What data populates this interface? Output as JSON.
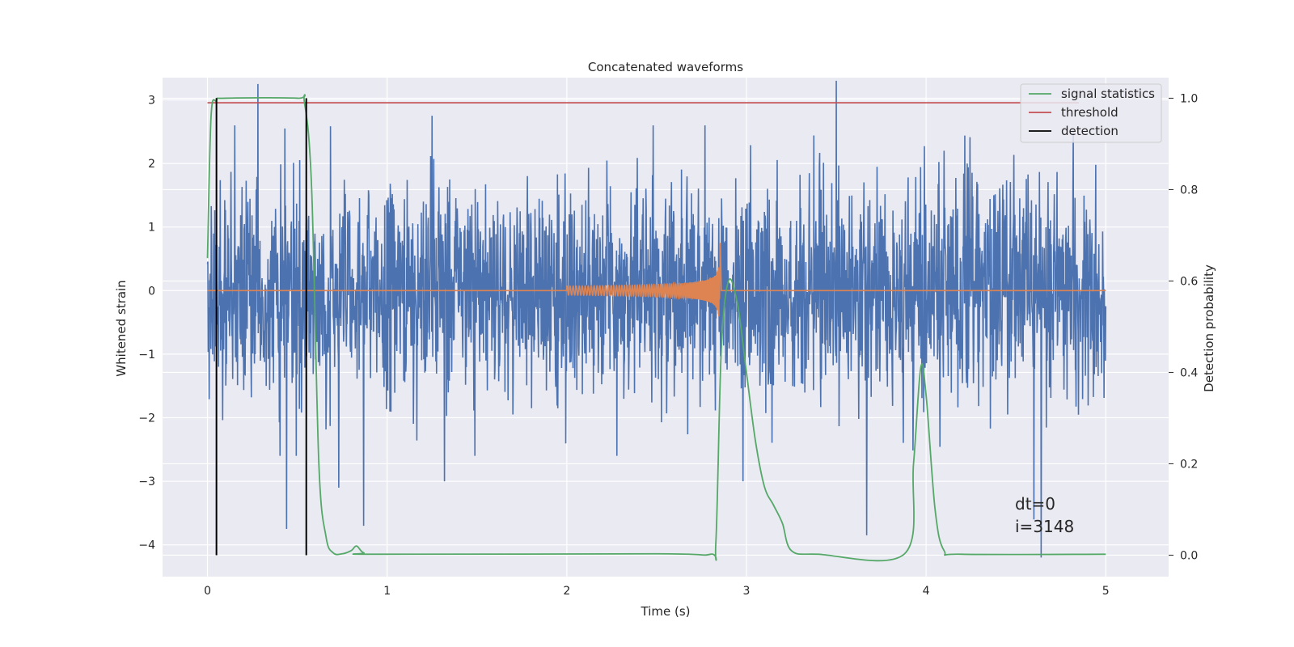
{
  "chart_data": {
    "type": "line",
    "title": "Concatenated waveforms",
    "xlabel": "Time (s)",
    "ylabel": "Whitened strain",
    "y2label": "Detection probability",
    "xlim": [
      -0.25,
      5.35
    ],
    "ylim": [
      -4.5,
      3.35
    ],
    "y2lim": [
      -0.047,
      1.045
    ],
    "xticks": [
      0,
      1,
      2,
      3,
      4,
      5
    ],
    "yticks": [
      -4,
      -3,
      -2,
      -1,
      0,
      1,
      2,
      3
    ],
    "y2ticks": [
      0.0,
      0.2,
      0.4,
      0.6,
      0.8,
      1.0
    ],
    "xtick_labels": [
      "0",
      "1",
      "2",
      "3",
      "4",
      "5"
    ],
    "ytick_labels": [
      "−4",
      "−3",
      "−2",
      "−1",
      "0",
      "1",
      "2",
      "3"
    ],
    "y2tick_labels": [
      "0.0",
      "0.2",
      "0.4",
      "0.6",
      "0.8",
      "1.0"
    ],
    "grid": true,
    "legend_position": "top-right",
    "legend": [
      {
        "label": "signal statistics",
        "color": "#55a868"
      },
      {
        "label": "threshold",
        "color": "#c44e52"
      },
      {
        "label": "detection",
        "color": "#000000"
      }
    ],
    "noise": {
      "color": "#4c72b0",
      "t_start": 0,
      "t_end": 5,
      "typical_range": [
        -2.0,
        2.3
      ],
      "extremes": [
        {
          "t": 0.28,
          "v": 3.25
        },
        {
          "t": 0.44,
          "v": -3.75
        },
        {
          "t": 0.43,
          "v": 2.55
        },
        {
          "t": 0.73,
          "v": -3.1
        },
        {
          "t": 0.87,
          "v": -3.7
        },
        {
          "t": 1.25,
          "v": 2.75
        },
        {
          "t": 1.32,
          "v": -3.0
        },
        {
          "t": 2.98,
          "v": -3.0
        },
        {
          "t": 3.5,
          "v": 3.3
        },
        {
          "t": 3.67,
          "v": -3.85
        },
        {
          "t": 4.1,
          "v": 2.2
        },
        {
          "t": 4.6,
          "v": -3.6
        },
        {
          "t": 4.64,
          "v": -4.2
        },
        {
          "t": 4.82,
          "v": 2.55
        }
      ]
    },
    "chirp": {
      "color": "#dd8452",
      "t_start": 2.0,
      "t_merge": 2.85,
      "peak": 0.75,
      "trough": -0.45
    },
    "signal_statistics": {
      "color": "#55a868",
      "axis": "right",
      "t": [
        0,
        0.02,
        0.05,
        0.1,
        0.5,
        0.54,
        0.58,
        0.62,
        0.66,
        0.7,
        0.75,
        0.8,
        0.83,
        0.87,
        0.95,
        2.5,
        2.8,
        2.83,
        2.86,
        2.9,
        2.95,
        3.0,
        3.05,
        3.1,
        3.15,
        3.2,
        3.25,
        3.4,
        3.88,
        3.93,
        3.97,
        4.0,
        4.05,
        4.1,
        4.2,
        5.0
      ],
      "p": [
        0.65,
        0.96,
        0.995,
        1.0,
        1.0,
        0.99,
        0.8,
        0.2,
        0.04,
        0.005,
        0.003,
        0.01,
        0.02,
        0.005,
        0.002,
        0.003,
        0.002,
        0.03,
        0.45,
        0.6,
        0.55,
        0.4,
        0.25,
        0.15,
        0.11,
        0.07,
        0.01,
        0.002,
        0.003,
        0.2,
        0.41,
        0.35,
        0.1,
        0.01,
        0.002,
        0.002
      ]
    },
    "threshold": {
      "color": "#c44e52",
      "value": 0.99,
      "t_start": 0,
      "t_end": 4.85
    },
    "detections": [
      {
        "t": 0.05,
        "color": "#000000"
      },
      {
        "t": 0.55,
        "color": "#000000"
      }
    ],
    "annotation": [
      "dt=0",
      "i=3148"
    ],
    "annotation_pos": {
      "t": 4.5,
      "v": -3.35
    }
  }
}
